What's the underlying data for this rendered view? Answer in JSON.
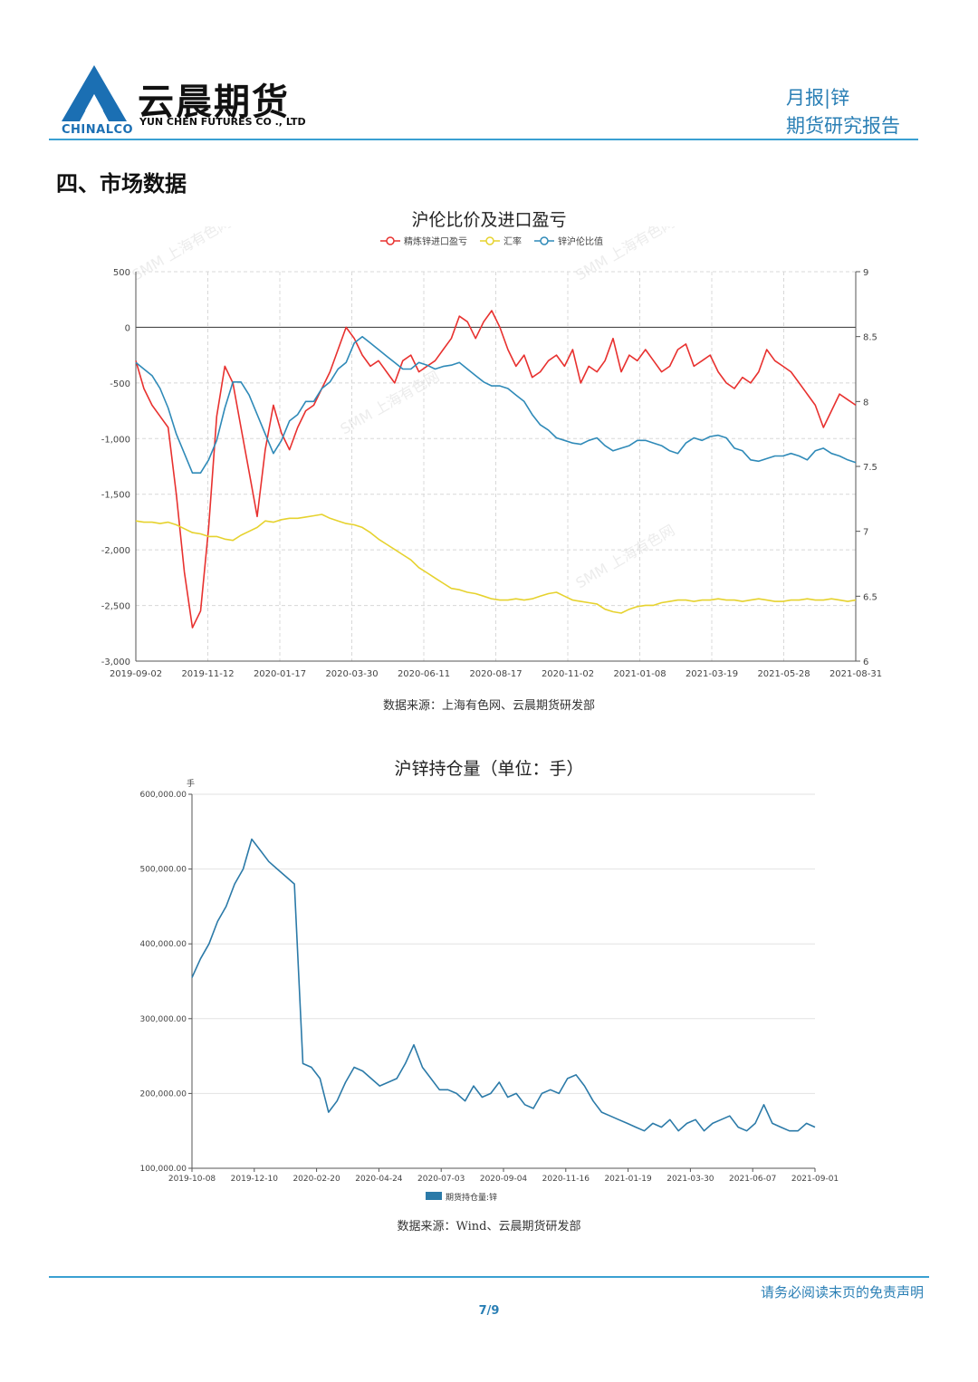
{
  "header": {
    "brand_cn": "云晨期货",
    "brand_en": "YUN CHEN FUTURES CO ., LTD",
    "brand_parent": "CHINALCO",
    "report_type": "月报|锌",
    "report_category": "期货研究报告"
  },
  "section_title": "四、市场数据",
  "chart_data": [
    {
      "type": "line",
      "title": "沪伦比价及进口盈亏",
      "watermark": "SMM 上海有色网",
      "legend_position": "top-center",
      "grid": true,
      "x_ticks": [
        "2019-09-02",
        "2019-11-12",
        "2020-01-17",
        "2020-03-30",
        "2020-06-11",
        "2020-08-17",
        "2020-11-02",
        "2021-01-08",
        "2021-03-19",
        "2021-05-28",
        "2021-08-31"
      ],
      "y_left": {
        "ticks": [
          500,
          0,
          -500,
          -1000,
          -1500,
          -2000,
          -2500,
          -3000
        ],
        "range": [
          -3000,
          500
        ]
      },
      "y_right": {
        "ticks": [
          9,
          8.5,
          8,
          7.5,
          7,
          6.5,
          6
        ],
        "range": [
          6,
          9
        ]
      },
      "series": [
        {
          "name": "精炼锌进口盈亏",
          "axis": "left",
          "color": "#e8312f",
          "values": [
            -300,
            -550,
            -700,
            -800,
            -900,
            -1500,
            -2200,
            -2700,
            -2550,
            -1800,
            -800,
            -350,
            -500,
            -900,
            -1300,
            -1700,
            -1100,
            -700,
            -950,
            -1100,
            -900,
            -750,
            -700,
            -550,
            -400,
            -200,
            0,
            -100,
            -250,
            -350,
            -300,
            -400,
            -500,
            -300,
            -250,
            -400,
            -350,
            -300,
            -200,
            -100,
            100,
            50,
            -100,
            50,
            150,
            0,
            -200,
            -350,
            -250,
            -450,
            -400,
            -300,
            -250,
            -350,
            -200,
            -500,
            -350,
            -400,
            -300,
            -100,
            -400,
            -250,
            -300,
            -200,
            -300,
            -400,
            -350,
            -200,
            -150,
            -350,
            -300,
            -250,
            -400,
            -500,
            -550,
            -450,
            -500,
            -400,
            -200,
            -300,
            -350,
            -400,
            -500,
            -600,
            -700,
            -900,
            -750,
            -600,
            -650,
            -700
          ]
        },
        {
          "name": "汇率",
          "axis": "right",
          "color": "#e6d22e",
          "values": [
            7.08,
            7.07,
            7.07,
            7.06,
            7.07,
            7.05,
            7.02,
            6.99,
            6.98,
            6.96,
            6.96,
            6.94,
            6.93,
            6.97,
            7.0,
            7.03,
            7.08,
            7.07,
            7.09,
            7.1,
            7.1,
            7.11,
            7.12,
            7.13,
            7.1,
            7.08,
            7.06,
            7.05,
            7.03,
            6.99,
            6.94,
            6.9,
            6.86,
            6.82,
            6.78,
            6.72,
            6.68,
            6.64,
            6.6,
            6.56,
            6.55,
            6.53,
            6.52,
            6.5,
            6.48,
            6.47,
            6.47,
            6.48,
            6.47,
            6.48,
            6.5,
            6.52,
            6.53,
            6.5,
            6.47,
            6.46,
            6.45,
            6.44,
            6.4,
            6.38,
            6.37,
            6.4,
            6.42,
            6.43,
            6.43,
            6.45,
            6.46,
            6.47,
            6.47,
            6.46,
            6.47,
            6.47,
            6.48,
            6.47,
            6.47,
            6.46,
            6.47,
            6.48,
            6.47,
            6.46,
            6.46,
            6.47,
            6.47,
            6.48,
            6.47,
            6.47,
            6.48,
            6.47,
            6.46,
            6.47
          ]
        },
        {
          "name": "锌沪伦比值",
          "axis": "right",
          "color": "#2f8ab8",
          "values": [
            8.3,
            8.25,
            8.2,
            8.1,
            7.95,
            7.75,
            7.6,
            7.45,
            7.45,
            7.55,
            7.7,
            7.95,
            8.15,
            8.15,
            8.05,
            7.9,
            7.75,
            7.6,
            7.7,
            7.85,
            7.9,
            8.0,
            8.0,
            8.1,
            8.15,
            8.25,
            8.3,
            8.45,
            8.5,
            8.45,
            8.4,
            8.35,
            8.3,
            8.25,
            8.25,
            8.3,
            8.28,
            8.25,
            8.27,
            8.28,
            8.3,
            8.25,
            8.2,
            8.15,
            8.12,
            8.12,
            8.1,
            8.05,
            8.0,
            7.9,
            7.82,
            7.78,
            7.72,
            7.7,
            7.68,
            7.67,
            7.7,
            7.72,
            7.66,
            7.62,
            7.64,
            7.66,
            7.7,
            7.7,
            7.68,
            7.66,
            7.62,
            7.6,
            7.68,
            7.72,
            7.7,
            7.73,
            7.74,
            7.72,
            7.64,
            7.62,
            7.55,
            7.54,
            7.56,
            7.58,
            7.58,
            7.6,
            7.58,
            7.55,
            7.62,
            7.64,
            7.6,
            7.58,
            7.55,
            7.53
          ]
        }
      ]
    },
    {
      "type": "line",
      "title": "沪锌持仓量（单位：手）",
      "unit_label": "手",
      "legend_position": "bottom-center",
      "grid": true,
      "x_ticks": [
        "2019-10-08",
        "2019-12-10",
        "2020-02-20",
        "2020-04-24",
        "2020-07-03",
        "2020-09-04",
        "2020-11-16",
        "2021-01-19",
        "2021-03-30",
        "2021-06-07",
        "2021-09-01"
      ],
      "y": {
        "ticks": [
          "600,000.00",
          "500,000.00",
          "400,000.00",
          "300,000.00",
          "200,000.00",
          "100,000.00"
        ],
        "range": [
          100000,
          600000
        ]
      },
      "series": [
        {
          "name": "期货持仓量:锌",
          "color": "#2b7aa8",
          "values": [
            355000,
            380000,
            400000,
            430000,
            450000,
            480000,
            500000,
            540000,
            525000,
            510000,
            500000,
            490000,
            480000,
            240000,
            235000,
            220000,
            175000,
            190000,
            215000,
            235000,
            230000,
            220000,
            210000,
            215000,
            220000,
            240000,
            265000,
            235000,
            220000,
            205000,
            205000,
            200000,
            190000,
            210000,
            195000,
            200000,
            215000,
            195000,
            200000,
            185000,
            180000,
            200000,
            205000,
            200000,
            220000,
            225000,
            210000,
            190000,
            175000,
            170000,
            165000,
            160000,
            155000,
            150000,
            160000,
            155000,
            165000,
            150000,
            160000,
            165000,
            150000,
            160000,
            165000,
            170000,
            155000,
            150000,
            160000,
            185000,
            160000,
            155000,
            150000,
            150000,
            160000,
            155000
          ]
        }
      ]
    }
  ],
  "source_1": "数据来源：上海有色网、云晨期货研发部",
  "source_2": "数据来源：Wind、云晨期货研发部",
  "footer": {
    "disclaimer": "请务必阅读末页的免责声明",
    "page": "7/9"
  }
}
